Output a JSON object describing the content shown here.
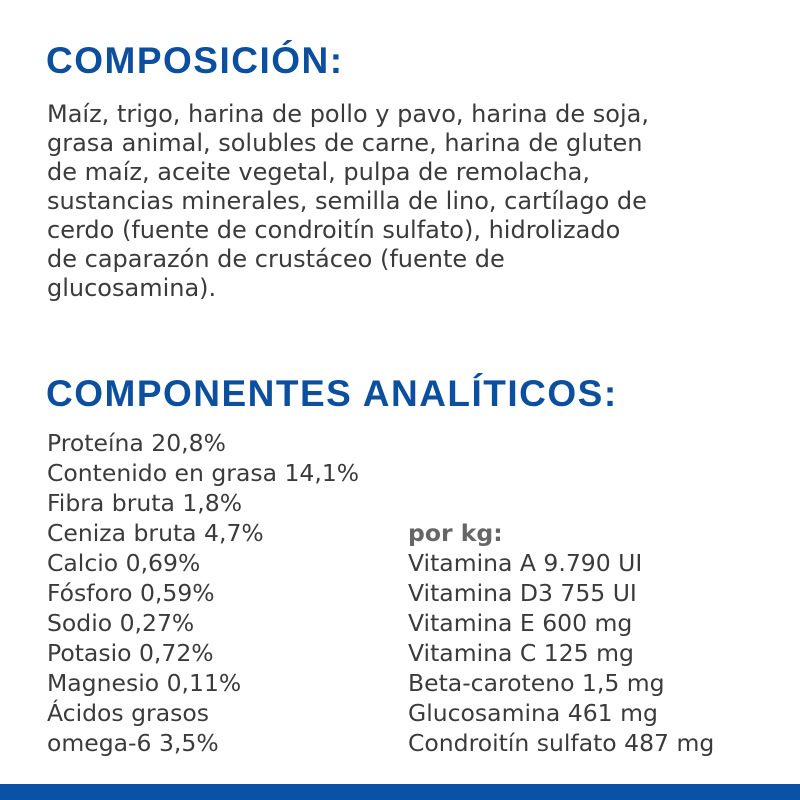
{
  "composition": {
    "title": "COMPOSICIÓN:",
    "lines": [
      "Maíz, trigo, harina de pollo y pavo, harina de soja,",
      "grasa animal, solubles de carne, harina de gluten",
      "de maíz, aceite vegetal, pulpa de remolacha,",
      "sustancias minerales, semilla de lino, cartílago de",
      "cerdo (fuente de condroitín sulfato), hidrolizado",
      "de caparazón de crustáceo (fuente de",
      "glucosamina)."
    ]
  },
  "analytics": {
    "title": "COMPONENTES ANALÍTICOS:",
    "left": [
      "Proteína 20,8%",
      "Contenido en grasa 14,1%",
      "Fibra bruta 1,8%",
      "Ceniza bruta 4,7%",
      "Calcio 0,69%",
      "Fósforo 0,59%",
      "Sodio 0,27%",
      "Potasio 0,72%",
      "Magnesio 0,11%",
      "Ácidos grasos",
      "omega-6 3,5%"
    ],
    "per_kg_label": "por kg:",
    "right": [
      "Vitamina A 9.790 UI",
      "Vitamina D3 755 UI",
      "Vitamina E 600 mg",
      "Vitamina C 125 mg",
      "Beta-caroteno 1,5 mg",
      "Glucosamina 461 mg",
      "Condroitín sulfato 487 mg"
    ]
  },
  "colors": {
    "heading": "#0b4f9e",
    "text": "#3b3b3b",
    "footer_bar": "#0a52a5"
  }
}
